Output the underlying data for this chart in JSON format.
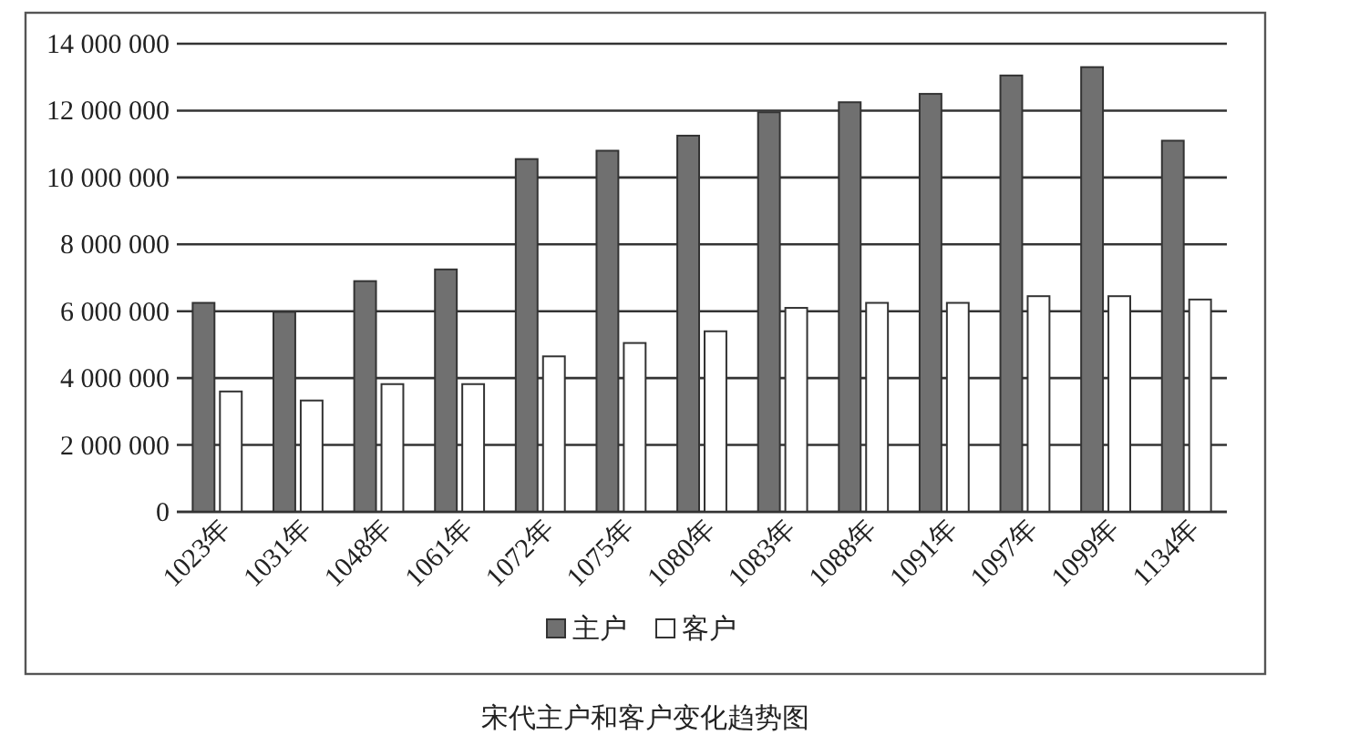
{
  "chart_data": {
    "type": "bar",
    "title": "宋代主户和客户变化趋势图",
    "categories": [
      "1023年",
      "1031年",
      "1048年",
      "1061年",
      "1072年",
      "1075年",
      "1080年",
      "1083年",
      "1088年",
      "1091年",
      "1097年",
      "1099年",
      "1134年"
    ],
    "series": [
      {
        "name": "主户",
        "color": "#707070",
        "values": [
          6250000,
          5980000,
          6900000,
          7250000,
          10550000,
          10800000,
          11250000,
          11950000,
          12250000,
          12500000,
          13050000,
          13300000,
          11100000
        ]
      },
      {
        "name": "客户",
        "color": "#ffffff",
        "values": [
          3600000,
          3330000,
          3820000,
          3820000,
          4650000,
          5050000,
          5400000,
          6100000,
          6250000,
          6250000,
          6450000,
          6450000,
          6350000
        ]
      }
    ],
    "ylim": [
      0,
      14000000
    ],
    "yticks": [
      {
        "value": 0,
        "label": "0"
      },
      {
        "value": 2000000,
        "label": "2 000 000"
      },
      {
        "value": 4000000,
        "label": "4 000 000"
      },
      {
        "value": 6000000,
        "label": "6 000 000"
      },
      {
        "value": 8000000,
        "label": "8 000 000"
      },
      {
        "value": 10000000,
        "label": "10 000 000"
      },
      {
        "value": 12000000,
        "label": "12 000 000"
      },
      {
        "value": 14000000,
        "label": "14 000 000"
      }
    ],
    "grid": "y",
    "legend": "bottom"
  }
}
